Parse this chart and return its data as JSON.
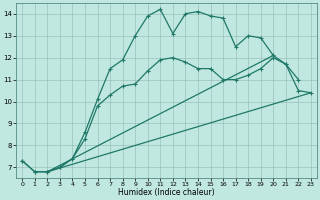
{
  "xlabel": "Humidex (Indice chaleur)",
  "background_color": "#c0e8e0",
  "grid_color": "#90b8b0",
  "line_color": "#207868",
  "xlim": [
    -0.5,
    23.5
  ],
  "ylim": [
    6.5,
    14.5
  ],
  "xticks": [
    0,
    1,
    2,
    3,
    4,
    5,
    6,
    7,
    8,
    9,
    10,
    11,
    12,
    13,
    14,
    15,
    16,
    17,
    18,
    19,
    20,
    21,
    22,
    23
  ],
  "yticks": [
    7,
    8,
    9,
    10,
    11,
    12,
    13,
    14
  ],
  "series_marked_top": {
    "x": [
      0,
      1,
      2,
      3,
      4,
      5,
      6,
      7,
      8,
      9,
      10,
      11,
      12,
      13,
      14,
      15,
      16,
      17,
      18,
      19,
      20,
      21,
      22
    ],
    "y": [
      7.3,
      6.8,
      6.8,
      7.0,
      7.4,
      8.6,
      10.1,
      11.5,
      11.9,
      13.0,
      13.9,
      14.2,
      13.1,
      14.0,
      14.1,
      13.9,
      13.8,
      12.5,
      13.0,
      12.9,
      12.1,
      11.7,
      11.0
    ]
  },
  "series_marked_mid": {
    "x": [
      0,
      1,
      2,
      3,
      4,
      5,
      6,
      7,
      8,
      9,
      10,
      11,
      12,
      13,
      14,
      15,
      16,
      17,
      18,
      19,
      20,
      21,
      22,
      23
    ],
    "y": [
      7.3,
      6.8,
      6.8,
      7.0,
      7.4,
      8.3,
      9.8,
      10.3,
      10.7,
      10.8,
      11.4,
      11.9,
      12.0,
      11.8,
      11.5,
      11.5,
      11.0,
      11.0,
      11.2,
      11.5,
      12.0,
      11.7,
      10.5,
      10.4
    ]
  },
  "series_diag1": {
    "x": [
      2,
      23
    ],
    "y": [
      6.8,
      10.4
    ]
  },
  "series_diag2": {
    "x": [
      2,
      20
    ],
    "y": [
      6.8,
      12.1
    ]
  }
}
